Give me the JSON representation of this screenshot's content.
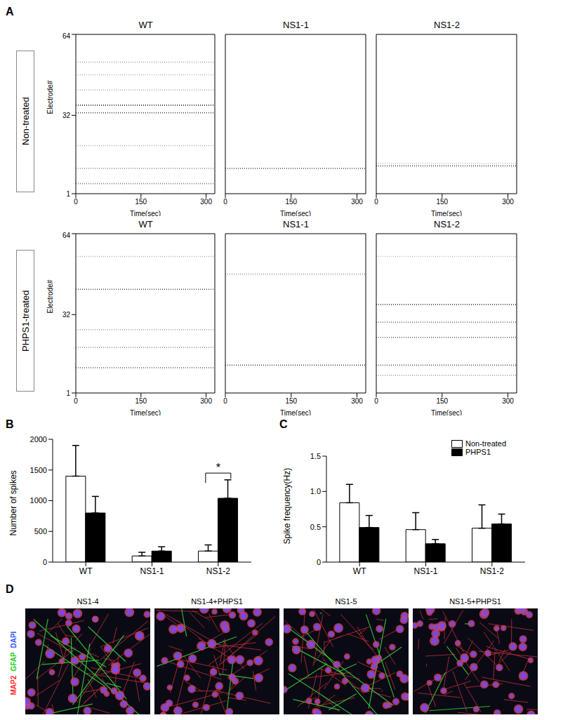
{
  "chart_data": [
    {
      "type": "raster",
      "panel": "A",
      "group": "Non-treated",
      "title": "WT",
      "x_label": "Time(sec)",
      "y_label": "Electrode#",
      "xlim": [
        0,
        320
      ],
      "xticks": [
        0,
        150,
        300
      ],
      "ylim": [
        1,
        64
      ],
      "yticks": [
        1,
        32,
        64
      ],
      "rows": [
        {
          "electrode": 53,
          "color": "#aaaaaa"
        },
        {
          "electrode": 48,
          "color": "#bbbbbb"
        },
        {
          "electrode": 42,
          "color": "#aaaaaa"
        },
        {
          "electrode": 36,
          "color": "#222222"
        },
        {
          "electrode": 33,
          "color": "#333333"
        },
        {
          "electrode": 20,
          "color": "#aaaaaa"
        },
        {
          "electrode": 11,
          "color": "#888888"
        },
        {
          "electrode": 5,
          "color": "#777777"
        }
      ]
    },
    {
      "type": "raster",
      "panel": "A",
      "group": "Non-treated",
      "title": "NS1-1",
      "x_label": "Time(sec)",
      "tick_labels": "x",
      "xlim": [
        0,
        320
      ],
      "xticks": [
        0,
        150,
        300
      ],
      "ylim": [
        1,
        64
      ],
      "rows": [
        {
          "electrode": 11,
          "color": "#444444"
        }
      ]
    },
    {
      "type": "raster",
      "panel": "A",
      "group": "Non-treated",
      "title": "NS1-2",
      "x_label": "Time(sec)",
      "tick_labels": "x",
      "xlim": [
        0,
        320
      ],
      "xticks": [
        0,
        150,
        300
      ],
      "ylim": [
        1,
        64
      ],
      "rows": [
        {
          "electrode": 13,
          "color": "#bbbbbb"
        },
        {
          "electrode": 12,
          "color": "#444444"
        }
      ]
    },
    {
      "type": "raster",
      "panel": "A",
      "group": "PHPS1-treated",
      "title": "WT",
      "x_label": "Time(sec)",
      "y_label": "Electrode#",
      "xlim": [
        0,
        320
      ],
      "xticks": [
        0,
        150,
        300
      ],
      "ylim": [
        1,
        64
      ],
      "yticks": [
        1,
        32,
        64
      ],
      "rows": [
        {
          "electrode": 55,
          "color": "#aaaaaa"
        },
        {
          "electrode": 42,
          "color": "#444444"
        },
        {
          "electrode": 26,
          "color": "#aaaaaa"
        },
        {
          "electrode": 19,
          "color": "#999999"
        },
        {
          "electrode": 11,
          "color": "#555555"
        }
      ]
    },
    {
      "type": "raster",
      "panel": "A",
      "group": "PHPS1-treated",
      "title": "NS1-1",
      "x_label": "Time(sec)",
      "tick_labels": "x",
      "xlim": [
        0,
        320
      ],
      "xticks": [
        0,
        150,
        300
      ],
      "ylim": [
        1,
        64
      ],
      "rows": [
        {
          "electrode": 48,
          "color": "#999999"
        },
        {
          "electrode": 12,
          "color": "#444444"
        }
      ]
    },
    {
      "type": "raster",
      "panel": "A",
      "group": "PHPS1-treated",
      "title": "NS1-2",
      "x_label": "Time(sec)",
      "tick_labels": "x",
      "xlim": [
        0,
        320
      ],
      "xticks": [
        0,
        150,
        300
      ],
      "ylim": [
        1,
        64
      ],
      "rows": [
        {
          "electrode": 55,
          "color": "#bbbbbb"
        },
        {
          "electrode": 36,
          "color": "#444444"
        },
        {
          "electrode": 29,
          "color": "#777777"
        },
        {
          "electrode": 23,
          "color": "#555555"
        },
        {
          "electrode": 12,
          "color": "#555555"
        },
        {
          "electrode": 8,
          "color": "#999999"
        }
      ]
    },
    {
      "type": "bar",
      "panel": "B",
      "y_label": "Number of spikes",
      "categories": [
        "WT",
        "NS1-1",
        "NS1-2"
      ],
      "ylim": [
        0,
        2000
      ],
      "yticks": [
        0,
        500,
        1000,
        1500,
        2000
      ],
      "series": [
        {
          "name": "Non-treated",
          "color": "#ffffff",
          "values": [
            1400,
            100,
            180
          ],
          "errors": [
            500,
            60,
            100
          ]
        },
        {
          "name": "PHPS1",
          "color": "#000000",
          "values": [
            800,
            180,
            1040
          ],
          "errors": [
            270,
            70,
            300
          ]
        }
      ],
      "annotations": [
        {
          "text": "*",
          "category": "NS1-2",
          "y": 1450
        }
      ]
    },
    {
      "type": "bar",
      "panel": "C",
      "y_label": "Spike frequency(Hz)",
      "categories": [
        "WT",
        "NS1-1",
        "NS1-2"
      ],
      "ylim": [
        0,
        1.5
      ],
      "yticks": [
        0,
        0.5,
        {
          "value": 1,
          "label": "1.0"
        },
        1.5
      ],
      "legend": "top-right",
      "series": [
        {
          "name": "Non-treated",
          "color": "#ffffff",
          "values": [
            0.84,
            0.46,
            0.48
          ],
          "errors": [
            0.26,
            0.24,
            0.33
          ]
        },
        {
          "name": "PHPS1",
          "color": "#000000",
          "values": [
            0.49,
            0.26,
            0.54
          ],
          "errors": [
            0.17,
            0.06,
            0.14
          ]
        }
      ]
    }
  ],
  "images": {
    "panel": "D",
    "stains": [
      {
        "text": "MAP2",
        "color": "#ff2a2a"
      },
      {
        "text": "GFAP",
        "color": "#22cc22"
      },
      {
        "text": "DAPI",
        "color": "#3355ff"
      }
    ],
    "labels": [
      "NS1-4",
      "NS1-4+PHPS1",
      "NS1-5",
      "NS1-5+PHPS1"
    ]
  }
}
